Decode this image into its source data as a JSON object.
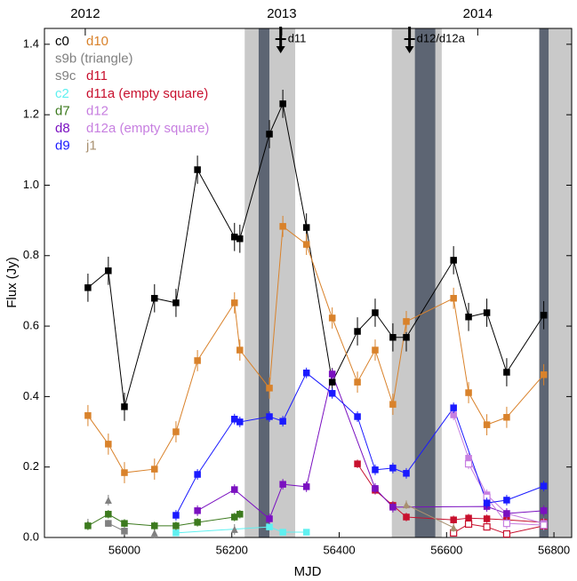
{
  "chart_data": {
    "type": "scatter",
    "xlabel": "MJD",
    "ylabel": "Flux (Jy)",
    "xlim": [
      55851,
      56833
    ],
    "ylim": [
      0,
      1.445
    ],
    "xticks": [
      56000,
      56200,
      56400,
      56600,
      56800
    ],
    "yticks": [
      {
        "value": 0,
        "label": "0.0"
      },
      0.2,
      0.4,
      0.6,
      0.8,
      {
        "value": 1,
        "label": "1.0"
      },
      1.2,
      1.4
    ],
    "x2ticks": [
      {
        "value": 55927,
        "label": "2012"
      },
      {
        "value": 56293,
        "label": "2013"
      },
      {
        "value": 56658,
        "label": "2014"
      }
    ],
    "bands": [
      {
        "start": 56224,
        "end": 56318,
        "color": "#c9c9c9"
      },
      {
        "start": 56250,
        "end": 56270,
        "color": "#5d6573"
      },
      {
        "start": 56498,
        "end": 56591,
        "color": "#c9c9c9"
      },
      {
        "start": 56541,
        "end": 56579,
        "color": "#5d6573"
      },
      {
        "start": 56772,
        "end": 56833,
        "color": "#c9c9c9"
      },
      {
        "start": 56773,
        "end": 56790,
        "color": "#5d6573"
      }
    ],
    "annotations": [
      {
        "text": "d11",
        "x": 56291
      },
      {
        "text": "d12/d12a",
        "x": 56531
      }
    ],
    "series": [
      {
        "name": "c0",
        "color": "#000000",
        "marker": "square",
        "line": true,
        "error": 0.04,
        "x": [
          55932,
          55970,
          56000,
          56056,
          56096,
          56136,
          56205,
          56215,
          56270,
          56295,
          56339,
          56387,
          56434,
          56467,
          56500,
          56525,
          56613,
          56641,
          56675,
          56712,
          56781
        ],
        "values": [
          0.709,
          0.757,
          0.371,
          0.679,
          0.666,
          1.044,
          0.853,
          0.848,
          1.145,
          1.231,
          0.88,
          0.441,
          0.585,
          0.638,
          0.568,
          0.568,
          0.787,
          0.626,
          0.638,
          0.469,
          0.631
        ]
      },
      {
        "name": "d10",
        "color": "#d9822b",
        "marker": "square",
        "line": true,
        "error": 0.03,
        "x": [
          55932,
          55970,
          56000,
          56056,
          56096,
          56136,
          56205,
          56215,
          56270,
          56295,
          56339,
          56387,
          56434,
          56467,
          56500,
          56525,
          56613,
          56641,
          56675,
          56712,
          56781
        ],
        "values": [
          0.346,
          0.265,
          0.184,
          0.194,
          0.3,
          0.502,
          0.666,
          0.532,
          0.424,
          0.883,
          0.832,
          0.623,
          0.441,
          0.532,
          0.378,
          0.613,
          0.679,
          0.411,
          0.32,
          0.341,
          0.462
        ]
      },
      {
        "name": "s9b (triangle)",
        "color": "#808080",
        "marker": "triangle",
        "line": false,
        "error": 0.015,
        "x": [
          55932,
          55970,
          56056,
          56205
        ],
        "values": [
          0.038,
          0.106,
          0.013,
          0.023
        ]
      },
      {
        "name": "s9c",
        "color": "#808080",
        "marker": "square",
        "line": true,
        "error": 0.01,
        "x": [
          55970,
          56000
        ],
        "values": [
          0.04,
          0.018
        ]
      },
      {
        "name": "d11",
        "color": "#c8102e",
        "marker": "square",
        "line": true,
        "error": 0.012,
        "x": [
          56434,
          56467,
          56500,
          56525,
          56613,
          56641,
          56675,
          56712,
          56781
        ],
        "values": [
          0.209,
          0.134,
          0.091,
          0.058,
          0.05,
          0.055,
          0.053,
          0.05,
          0.043
        ]
      },
      {
        "name": "c2",
        "color": "#5ff0f0",
        "marker": "square",
        "line": true,
        "error": 0.008,
        "x": [
          56096,
          56270,
          56295,
          56339
        ],
        "values": [
          0.013,
          0.03,
          0.015,
          0.015
        ]
      },
      {
        "name": "d11a (empty square)",
        "color": "#c8102e",
        "marker": "open-square",
        "line": true,
        "error": 0.01,
        "x": [
          56613,
          56641,
          56675,
          56712,
          56781
        ],
        "values": [
          0.013,
          0.038,
          0.03,
          0.01,
          0.033
        ]
      },
      {
        "name": "d7",
        "color": "#3c7a1e",
        "marker": "square",
        "line": true,
        "error": 0.012,
        "x": [
          55932,
          55970,
          56000,
          56056,
          56096,
          56136,
          56205,
          56215
        ],
        "values": [
          0.033,
          0.066,
          0.04,
          0.033,
          0.033,
          0.043,
          0.058,
          0.066
        ]
      },
      {
        "name": "d12",
        "color": "#c77fe0",
        "marker": "square",
        "line": true,
        "error": 0.015,
        "x": [
          56613,
          56641,
          56675,
          56712,
          56781
        ],
        "values": [
          0.348,
          0.225,
          0.121,
          0.068,
          0.04
        ]
      },
      {
        "name": "d8",
        "color": "#7a10c0",
        "marker": "square",
        "line": true,
        "error": 0.015,
        "x": [
          56136,
          56205,
          56270,
          56295,
          56339,
          56387,
          56467,
          56500,
          56675,
          56712,
          56781
        ],
        "values": [
          0.076,
          0.136,
          0.053,
          0.151,
          0.144,
          0.464,
          0.139,
          0.086,
          0.088,
          0.068,
          0.076
        ]
      },
      {
        "name": "d12a (empty square)",
        "color": "#c77fe0",
        "marker": "open-square",
        "line": true,
        "error": 0.015,
        "x": [
          56641,
          56675,
          56712,
          56781
        ],
        "values": [
          0.209,
          0.114,
          0.04,
          0.035
        ]
      },
      {
        "name": "d9",
        "color": "#1a1aff",
        "marker": "square",
        "line": true,
        "error": 0.015,
        "x": [
          56096,
          56136,
          56205,
          56215,
          56270,
          56295,
          56339,
          56387,
          56434,
          56467,
          56500,
          56525,
          56613,
          56675,
          56712,
          56781
        ],
        "values": [
          0.063,
          0.179,
          0.336,
          0.328,
          0.343,
          0.33,
          0.467,
          0.409,
          0.343,
          0.192,
          0.197,
          0.182,
          0.368,
          0.098,
          0.106,
          0.146
        ]
      },
      {
        "name": "j1",
        "color": "#a89070",
        "marker": "triangle",
        "line": true,
        "error": 0.012,
        "x": [
          56525,
          56613
        ],
        "values": [
          0.093,
          0.028
        ]
      }
    ]
  }
}
